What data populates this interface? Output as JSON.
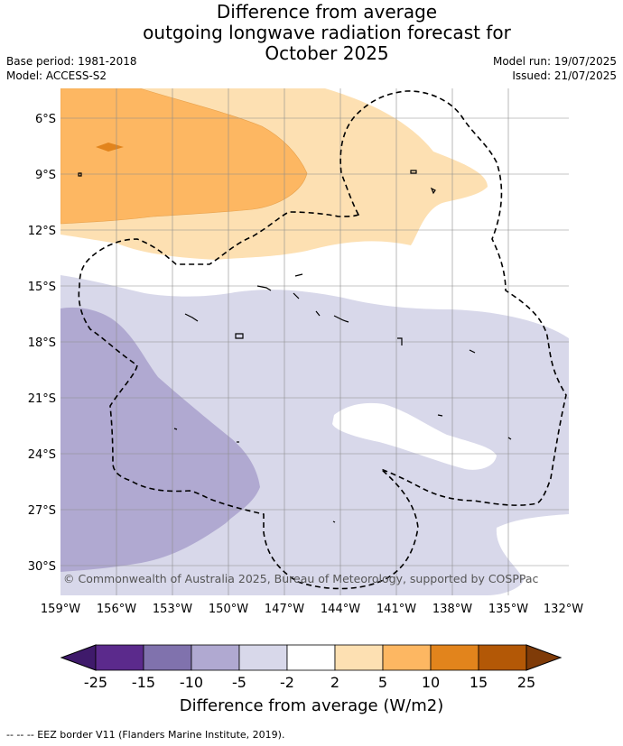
{
  "title": {
    "line1": "Difference from average",
    "line2": "outgoing longwave radiation forecast for",
    "line3": "October 2025"
  },
  "meta": {
    "base_period": "Base period: 1981-2018",
    "model": "Model: ACCESS-S2",
    "model_run": "Model run: 19/07/2025",
    "issued": "Issued: 21/07/2025"
  },
  "map": {
    "lat_labels": [
      "6°S",
      "9°S",
      "12°S",
      "15°S",
      "18°S",
      "21°S",
      "24°S",
      "27°S",
      "30°S"
    ],
    "lon_labels": [
      "159°W",
      "156°W",
      "153°W",
      "150°W",
      "147°W",
      "144°W",
      "141°W",
      "138°W",
      "135°W",
      "132°W"
    ],
    "copyright": "© Commonwealth of Australia 2025, Bureau of Meteorology, supported by COSPPac"
  },
  "colorbar": {
    "ticks": [
      "-25",
      "-15",
      "-10",
      "-5",
      "-2",
      "2",
      "5",
      "10",
      "15",
      "25"
    ],
    "colors": [
      "#3f1a6b",
      "#5b2a8c",
      "#8072ad",
      "#b0a9d1",
      "#d8d8ea",
      "#ffffff",
      "#fde0b2",
      "#fdb762",
      "#e2841c",
      "#b35806",
      "#7f3b08"
    ],
    "title": "Difference from average (W/m2)"
  },
  "footer": {
    "legend": "--  --  -- EEZ border V11 (Flanders Marine Institute, 2019)."
  }
}
